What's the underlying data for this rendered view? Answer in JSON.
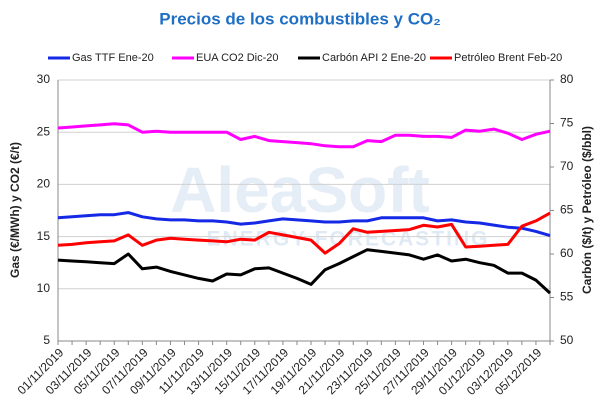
{
  "chart_data": {
    "type": "line",
    "title": "Precios de los combustibles y CO₂",
    "watermark": [
      "AleaSoft",
      "ENERGY FORECASTING"
    ],
    "ylabel": "Gas (€/MWh) y CO2 (€/t)",
    "y2label": "Carbón ($/t) y Petróleo ($/bbl)",
    "categories": [
      "01/11/2019",
      null,
      "03/11/2019",
      null,
      "05/11/2019",
      null,
      "07/11/2019",
      null,
      "09/11/2019",
      null,
      "11/11/2019",
      null,
      "13/11/2019",
      null,
      "15/11/2019",
      null,
      "17/11/2019",
      null,
      "19/11/2019",
      null,
      "21/11/2019",
      null,
      "23/11/2019",
      null,
      "25/11/2019",
      null,
      "27/11/2019",
      null,
      "29/11/2019",
      null,
      "01/12/2019",
      null,
      "03/12/2019",
      null,
      "05/12/2019",
      null
    ],
    "ylim": [
      5,
      30
    ],
    "yticks": [
      5,
      10,
      15,
      20,
      25,
      30
    ],
    "y2lim": [
      50,
      80
    ],
    "y2ticks": [
      50,
      55,
      60,
      65,
      70,
      75,
      80
    ],
    "grid": true,
    "legend": "top",
    "series": [
      {
        "name": "Gas TTF Ene-20",
        "color": "#1428e6",
        "values": [
          16.8,
          16.9,
          17.0,
          17.1,
          17.1,
          17.3,
          16.9,
          16.7,
          16.6,
          16.6,
          16.5,
          16.5,
          16.4,
          16.2,
          16.3,
          16.5,
          16.7,
          16.6,
          16.5,
          16.4,
          16.4,
          16.5,
          16.5,
          16.8,
          16.8,
          16.8,
          16.8,
          16.5,
          16.6,
          16.4,
          16.3,
          16.1,
          15.9,
          15.8,
          15.5,
          15.1
        ]
      },
      {
        "name": "EUA CO2 Dic-20",
        "color": "#ff00ff",
        "values": [
          25.4,
          25.5,
          25.6,
          25.7,
          25.8,
          25.7,
          25.0,
          25.1,
          25.0,
          25.0,
          25.0,
          25.0,
          25.0,
          24.3,
          24.6,
          24.2,
          24.1,
          24.0,
          23.9,
          23.7,
          23.6,
          23.6,
          24.2,
          24.1,
          24.7,
          24.7,
          24.6,
          24.6,
          24.5,
          25.2,
          25.1,
          25.3,
          24.9,
          24.3,
          24.8,
          25.1
        ]
      },
      {
        "name": "Carbón API 2 Ene-20",
        "color": "#000000",
        "axis": "y2",
        "values": [
          59.3,
          59.2,
          59.1,
          59.0,
          58.9,
          60.0,
          58.3,
          58.5,
          58.0,
          57.6,
          57.2,
          56.9,
          57.7,
          57.6,
          58.3,
          58.4,
          57.8,
          57.2,
          56.5,
          58.2,
          58.9,
          59.7,
          60.5,
          60.3,
          60.1,
          59.9,
          59.4,
          59.9,
          59.2,
          59.4,
          59.0,
          58.7,
          57.8,
          57.8,
          57.0,
          55.5
        ]
      },
      {
        "name": "Petróleo Brent Feb-20",
        "color": "#ff0000",
        "axis": "y2",
        "values": [
          61.0,
          61.1,
          61.3,
          61.4,
          61.5,
          62.2,
          61.0,
          61.6,
          61.8,
          61.7,
          61.6,
          61.5,
          61.4,
          61.7,
          61.6,
          62.5,
          62.2,
          61.9,
          61.6,
          60.1,
          61.2,
          62.9,
          62.5,
          62.6,
          62.7,
          62.8,
          63.3,
          63.1,
          63.4,
          60.8,
          60.9,
          61.0,
          61.1,
          63.2,
          63.8,
          64.7
        ]
      }
    ]
  }
}
